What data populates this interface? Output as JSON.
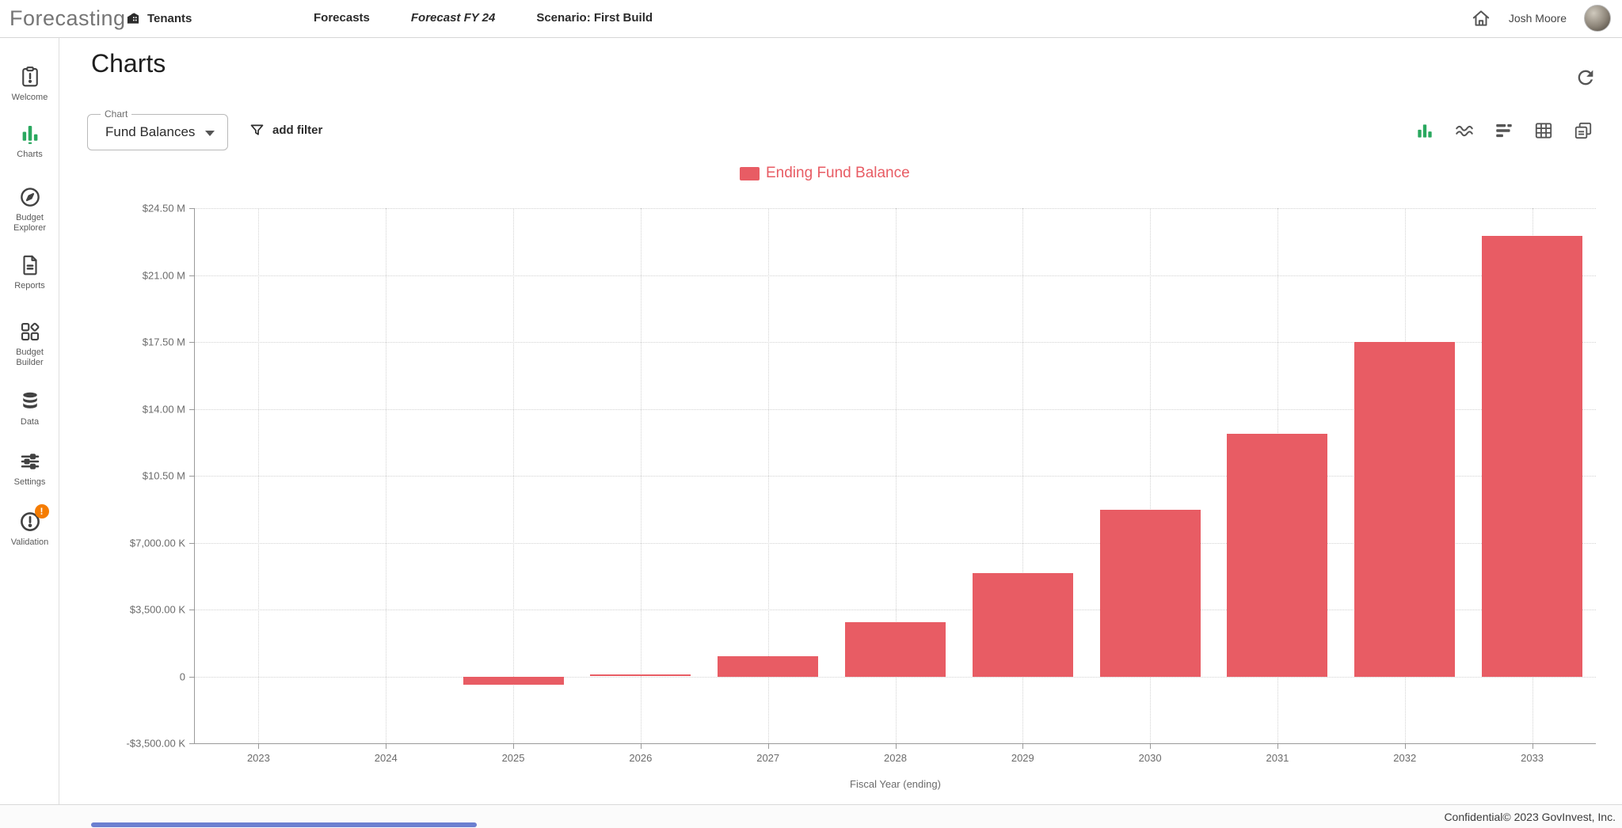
{
  "header": {
    "logo": "Forecasting",
    "tenants_label": "Tenants",
    "nav": {
      "forecasts": "Forecasts",
      "forecast_fy": "Forecast FY 24",
      "scenario": "Scenario: First Build"
    },
    "user_name": "Josh Moore"
  },
  "sidebar": {
    "items": [
      {
        "label": "Welcome",
        "icon": "clipboard-alert-icon",
        "active": false
      },
      {
        "label": "Charts",
        "icon": "bar-chart-icon",
        "active": true
      },
      {
        "label": "Budget Explorer",
        "icon": "compass-icon",
        "active": false
      },
      {
        "label": "Reports",
        "icon": "document-icon",
        "active": false
      },
      {
        "label": "Budget Builder",
        "icon": "grid-diamond-icon",
        "active": false
      },
      {
        "label": "Data",
        "icon": "database-icon",
        "active": false
      },
      {
        "label": "Settings",
        "icon": "sliders-icon",
        "active": false
      },
      {
        "label": "Validation",
        "icon": "alert-circle-icon",
        "active": false,
        "badge": "!"
      }
    ]
  },
  "main": {
    "title": "Charts",
    "chart_select": {
      "label": "Chart",
      "value": "Fund Balances"
    },
    "add_filter_label": "add filter",
    "toolbar": [
      {
        "icon": "bar-chart-type-icon",
        "active": true
      },
      {
        "icon": "line-chart-type-icon",
        "active": false
      },
      {
        "icon": "horizontal-bar-type-icon",
        "active": false
      },
      {
        "icon": "table-view-icon",
        "active": false
      },
      {
        "icon": "copy-chart-icon",
        "active": false
      }
    ]
  },
  "chart_data": {
    "type": "bar",
    "legend": [
      {
        "label": "Ending Fund Balance",
        "color": "#e85c64"
      }
    ],
    "categories": [
      "2023",
      "2024",
      "2025",
      "2026",
      "2027",
      "2028",
      "2029",
      "2030",
      "2031",
      "2032",
      "2033"
    ],
    "series": [
      {
        "name": "Ending Fund Balance",
        "color": "#e85c64",
        "values_k": [
          0,
          0,
          -420,
          100,
          1070,
          2850,
          5400,
          8700,
          12700,
          17500,
          23050
        ]
      }
    ],
    "xlabel": "Fiscal Year (ending)",
    "ylim_k": [
      -3500,
      24500
    ],
    "yticks": [
      {
        "value_k": -3500,
        "label": "-$3,500.00 K"
      },
      {
        "value_k": 0,
        "label": "0"
      },
      {
        "value_k": 3500,
        "label": "$3,500.00 K"
      },
      {
        "value_k": 7000,
        "label": "$7,000.00 K"
      },
      {
        "value_k": 10500,
        "label": "$10.50 M"
      },
      {
        "value_k": 14000,
        "label": "$14.00 M"
      },
      {
        "value_k": 17500,
        "label": "$17.50 M"
      },
      {
        "value_k": 21000,
        "label": "$21.00 M"
      },
      {
        "value_k": 24500,
        "label": "$24.50 M"
      }
    ],
    "grid": true,
    "legend_position": "top-center"
  },
  "colors": {
    "accent_green": "#2aa85f",
    "bar_red": "#e85c64",
    "badge_orange": "#f57c00"
  },
  "footer": {
    "text": "Confidential© 2023 GovInvest, Inc."
  }
}
